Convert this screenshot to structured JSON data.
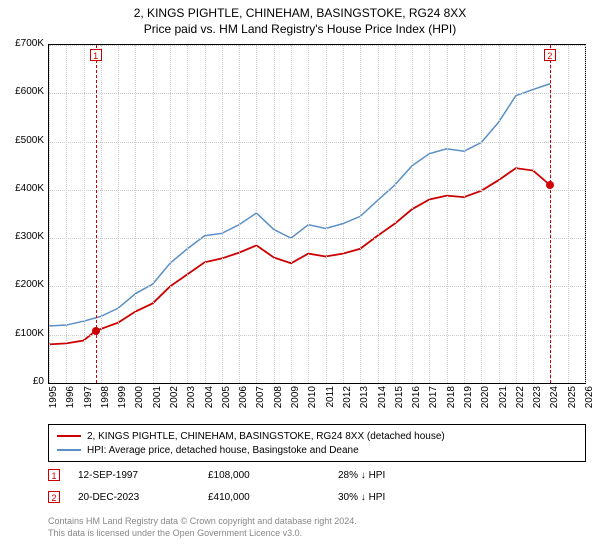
{
  "title": "2, KINGS PIGHTLE, CHINEHAM, BASINGSTOKE, RG24 8XX",
  "subtitle": "Price paid vs. HM Land Registry's House Price Index (HPI)",
  "chart": {
    "type": "line",
    "background_color": "#ffffff",
    "grid_color": "#cccccc",
    "border_color": "#000000",
    "xlim": [
      1995,
      2026
    ],
    "ylim": [
      0,
      700000
    ],
    "ytick_step": 100000,
    "yticks": [
      "£0",
      "£100K",
      "£200K",
      "£300K",
      "£400K",
      "£500K",
      "£600K",
      "£700K"
    ],
    "xticks": [
      1995,
      1996,
      1997,
      1998,
      1999,
      2000,
      2001,
      2002,
      2003,
      2004,
      2005,
      2006,
      2007,
      2008,
      2009,
      2010,
      2011,
      2012,
      2013,
      2014,
      2015,
      2016,
      2017,
      2018,
      2019,
      2020,
      2021,
      2022,
      2023,
      2024,
      2025,
      2026
    ],
    "series": [
      {
        "name": "price_paid",
        "color": "#cc0000",
        "line_width": 1.8,
        "data": [
          [
            1995,
            80000
          ],
          [
            1996,
            82000
          ],
          [
            1997,
            88000
          ],
          [
            1997.7,
            108000
          ],
          [
            1998,
            112000
          ],
          [
            1999,
            125000
          ],
          [
            2000,
            148000
          ],
          [
            2001,
            165000
          ],
          [
            2002,
            200000
          ],
          [
            2003,
            225000
          ],
          [
            2004,
            250000
          ],
          [
            2005,
            258000
          ],
          [
            2006,
            270000
          ],
          [
            2007,
            285000
          ],
          [
            2008,
            260000
          ],
          [
            2009,
            248000
          ],
          [
            2010,
            268000
          ],
          [
            2011,
            262000
          ],
          [
            2012,
            268000
          ],
          [
            2013,
            278000
          ],
          [
            2014,
            305000
          ],
          [
            2015,
            330000
          ],
          [
            2016,
            360000
          ],
          [
            2017,
            380000
          ],
          [
            2018,
            388000
          ],
          [
            2019,
            385000
          ],
          [
            2020,
            398000
          ],
          [
            2021,
            420000
          ],
          [
            2022,
            445000
          ],
          [
            2023,
            440000
          ],
          [
            2023.97,
            410000
          ],
          [
            2024,
            418000
          ]
        ]
      },
      {
        "name": "hpi",
        "color": "#5b8fc7",
        "line_width": 1.5,
        "data": [
          [
            1995,
            118000
          ],
          [
            1996,
            120000
          ],
          [
            1997,
            128000
          ],
          [
            1998,
            138000
          ],
          [
            1999,
            155000
          ],
          [
            2000,
            185000
          ],
          [
            2001,
            205000
          ],
          [
            2002,
            248000
          ],
          [
            2003,
            278000
          ],
          [
            2004,
            305000
          ],
          [
            2005,
            310000
          ],
          [
            2006,
            328000
          ],
          [
            2007,
            352000
          ],
          [
            2008,
            318000
          ],
          [
            2009,
            300000
          ],
          [
            2010,
            328000
          ],
          [
            2011,
            320000
          ],
          [
            2012,
            330000
          ],
          [
            2013,
            345000
          ],
          [
            2014,
            378000
          ],
          [
            2015,
            410000
          ],
          [
            2016,
            450000
          ],
          [
            2017,
            475000
          ],
          [
            2018,
            485000
          ],
          [
            2019,
            480000
          ],
          [
            2020,
            498000
          ],
          [
            2021,
            540000
          ],
          [
            2022,
            595000
          ],
          [
            2023,
            608000
          ],
          [
            2024,
            620000
          ]
        ]
      }
    ],
    "markers": [
      {
        "id": "1",
        "x": 1997.7,
        "y": 108000
      },
      {
        "id": "2",
        "x": 2023.97,
        "y": 410000
      }
    ]
  },
  "legend": {
    "items": [
      {
        "color": "#cc0000",
        "label": "2, KINGS PIGHTLE, CHINEHAM, BASINGSTOKE, RG24 8XX (detached house)"
      },
      {
        "color": "#5b8fc7",
        "label": "HPI: Average price, detached house, Basingstoke and Deane"
      }
    ]
  },
  "transactions": [
    {
      "id": "1",
      "date": "12-SEP-1997",
      "price": "£108,000",
      "diff": "28% ↓ HPI"
    },
    {
      "id": "2",
      "date": "20-DEC-2023",
      "price": "£410,000",
      "diff": "30% ↓ HPI"
    }
  ],
  "footer": {
    "line1": "Contains HM Land Registry data © Crown copyright and database right 2024.",
    "line2": "This data is licensed under the Open Government Licence v3.0."
  }
}
